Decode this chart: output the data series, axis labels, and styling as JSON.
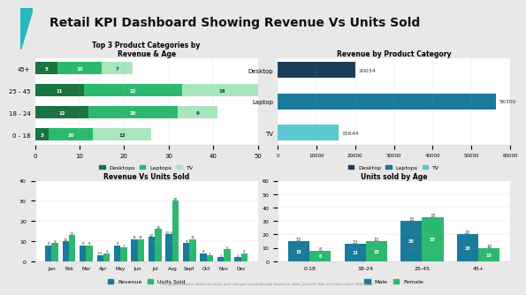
{
  "title": "Retail KPI Dashboard Showing Revenue Vs Units Sold",
  "title_fontsize": 10,
  "bg_color": "#e8e8e8",
  "panel_bg": "#ffffff",
  "chart1": {
    "title": "Top 3 Product Categories by\nRevenue & Age",
    "categories": [
      "0 - 18",
      "18 - 24",
      "25 - 45",
      "45+"
    ],
    "desktops": [
      3,
      12,
      11,
      5
    ],
    "laptops": [
      10,
      20,
      22,
      10
    ],
    "tv": [
      13,
      9,
      18,
      7
    ],
    "colors": [
      "#1a7340",
      "#2db870",
      "#a8e6be"
    ],
    "xlim": [
      0,
      50
    ],
    "xticks": [
      0,
      10,
      20,
      30,
      40,
      50
    ],
    "legend": [
      "Desktops",
      "Laptops",
      "TV"
    ]
  },
  "chart2": {
    "title": "Revenue by Product Category",
    "categories": [
      "TV",
      "Laptop",
      "Desktop"
    ],
    "values": [
      15644,
      56300,
      20034
    ],
    "colors": [
      "#5bc8d4",
      "#1a7a9a",
      "#1a3d5c"
    ],
    "xlim": [
      0,
      60000
    ],
    "xticks": [
      0,
      10000,
      20000,
      30000,
      40000,
      50000,
      60000
    ],
    "xtick_labels": [
      "0",
      "10000",
      "20000",
      "30000",
      "40000",
      "50000",
      "60000"
    ],
    "legend_colors": [
      "#1a3d5c",
      "#1a7a9a",
      "#5bc8d4"
    ],
    "legend": [
      "Desktop",
      "Laptops",
      "TV"
    ]
  },
  "chart3": {
    "title": "Revenue Vs Units Sold",
    "months": [
      "Jan",
      "Feb",
      "Mar",
      "Apr",
      "May",
      "Jun",
      "Jul",
      "Aug",
      "Sept",
      "Oct",
      "Nov",
      "Dec"
    ],
    "revenue": [
      8,
      10,
      8,
      3.2,
      8,
      11,
      12,
      13.5,
      9,
      4,
      2,
      2
    ],
    "units_sold": [
      9,
      13,
      8,
      4,
      7,
      11,
      16,
      30,
      11,
      3,
      6,
      4
    ],
    "colors": [
      "#1a7a9a",
      "#2db870"
    ],
    "ylim": [
      0,
      40
    ],
    "yticks": [
      0,
      10,
      20,
      30,
      40
    ],
    "legend": [
      "Revenue",
      "Units Sold"
    ]
  },
  "chart4": {
    "title": "Units sold by Age",
    "categories": [
      "0-18",
      "18-24",
      "25-45",
      "45+"
    ],
    "male": [
      15,
      13,
      30,
      20
    ],
    "female": [
      8,
      15,
      33,
      10
    ],
    "colors": [
      "#1a7a9a",
      "#2db870"
    ],
    "ylim": [
      0,
      60
    ],
    "yticks": [
      0,
      10,
      20,
      30,
      40,
      50,
      60
    ],
    "legend": [
      "Male",
      "Female"
    ]
  },
  "footer": "This graph/chart is linked to excel, and changes automatically based on data. Just left click on it and select 'Edit Data'."
}
